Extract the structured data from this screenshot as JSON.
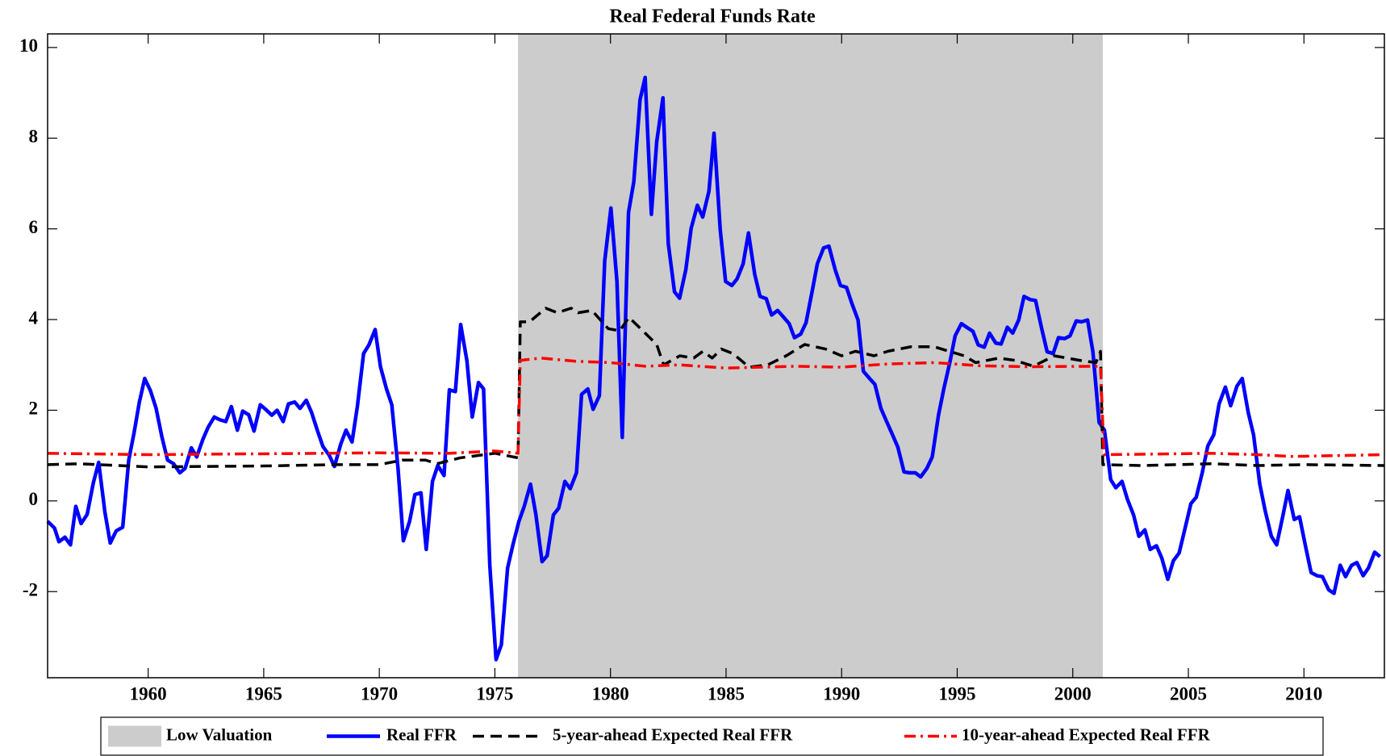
{
  "chart_data": {
    "type": "line",
    "title": "Real Federal Funds Rate",
    "xlim": [
      1955.65,
      2013.48
    ],
    "ylim": [
      -3.9,
      10.3
    ],
    "xticks": [
      1960,
      1965,
      1970,
      1975,
      1980,
      1985,
      1990,
      1995,
      2000,
      2005,
      2010
    ],
    "yticks": [
      -2,
      0,
      2,
      4,
      6,
      8,
      10
    ],
    "shaded_regions": [
      {
        "name": "Low Valuation",
        "color": "#cccccc",
        "spans": [
          [
            1976.0,
            1988.65
          ],
          [
            1988.65,
            2001.3
          ]
        ]
      }
    ],
    "series": [
      {
        "name": "Real FFR",
        "color": "#0000ff",
        "style": "solid",
        "x": [
          1955.65,
          1955.95,
          1956.14,
          1956.4,
          1956.64,
          1956.87,
          1957.1,
          1957.36,
          1957.63,
          1957.86,
          1958.13,
          1958.36,
          1958.62,
          1958.9,
          1959.16,
          1959.39,
          1959.62,
          1959.85,
          1960.1,
          1960.34,
          1960.6,
          1960.84,
          1961.1,
          1961.37,
          1961.6,
          1961.87,
          1962.1,
          1962.37,
          1962.6,
          1962.86,
          1963.1,
          1963.36,
          1963.6,
          1963.86,
          1964.09,
          1964.35,
          1964.58,
          1964.85,
          1965.08,
          1965.35,
          1965.58,
          1965.84,
          1966.07,
          1966.34,
          1966.57,
          1966.84,
          1967.07,
          1967.33,
          1967.56,
          1967.83,
          1968.06,
          1968.33,
          1968.56,
          1968.82,
          1969.05,
          1969.32,
          1969.55,
          1969.82,
          1970.05,
          1970.31,
          1970.54,
          1970.81,
          1971.04,
          1971.31,
          1971.54,
          1971.8,
          1972.03,
          1972.3,
          1972.53,
          1972.8,
          1973.03,
          1973.29,
          1973.52,
          1973.79,
          1974.02,
          1974.29,
          1974.51,
          1974.78,
          1975.05,
          1975.28,
          1975.55,
          1975.78,
          1976.04,
          1976.27,
          1976.54,
          1976.77,
          1977.04,
          1977.26,
          1977.53,
          1977.76,
          1978.03,
          1978.26,
          1978.53,
          1978.75,
          1979.02,
          1979.25,
          1979.52,
          1979.75,
          1980.02,
          1980.28,
          1980.51,
          1980.78,
          1981.01,
          1981.28,
          1981.5,
          1981.77,
          1982.0,
          1982.27,
          1982.5,
          1982.77,
          1982.99,
          1983.26,
          1983.49,
          1983.76,
          1983.99,
          1984.26,
          1984.48,
          1984.75,
          1984.98,
          1985.25,
          1985.48,
          1985.74,
          1985.97,
          1986.24,
          1986.47,
          1986.74,
          1986.97,
          1987.23,
          1987.46,
          1987.73,
          1987.96,
          1988.23,
          1988.46,
          1988.72,
          1988.95,
          1989.22,
          1989.45,
          1989.72,
          1989.95,
          1990.21,
          1990.44,
          1990.71,
          1990.94,
          1991.21,
          1991.44,
          1991.7,
          1991.93,
          1992.2,
          1992.43,
          1992.7,
          1992.93,
          1993.19,
          1993.42,
          1993.69,
          1993.92,
          1994.19,
          1994.42,
          1994.68,
          1994.91,
          1995.18,
          1995.41,
          1995.68,
          1995.91,
          1996.17,
          1996.4,
          1996.67,
          1996.9,
          1997.17,
          1997.4,
          1997.66,
          1997.89,
          1998.16,
          1998.39,
          1998.66,
          1998.89,
          1999.15,
          1999.38,
          1999.65,
          1999.88,
          2000.15,
          2000.38,
          2000.64,
          2000.87,
          2001.14,
          2001.37,
          2001.64,
          2001.86,
          2002.13,
          2002.36,
          2002.63,
          2002.86,
          2003.12,
          2003.35,
          2003.62,
          2003.85,
          2004.11,
          2004.35,
          2004.6,
          2004.84,
          2005.11,
          2005.34,
          2005.6,
          2005.84,
          2006.1,
          2006.33,
          2006.6,
          2006.83,
          2007.1,
          2007.33,
          2007.59,
          2007.82,
          2008.09,
          2008.32,
          2008.59,
          2008.82,
          2009.08,
          2009.31,
          2009.58,
          2009.81,
          2010.08,
          2010.31,
          2010.57,
          2010.8,
          2011.07,
          2011.3,
          2011.57,
          2011.8,
          2012.06,
          2012.29,
          2012.56,
          2012.79,
          2013.06,
          2013.29
        ],
        "values": [
          -0.45,
          -0.6,
          -0.9,
          -0.8,
          -0.97,
          -0.12,
          -0.5,
          -0.3,
          0.4,
          0.85,
          -0.25,
          -0.93,
          -0.66,
          -0.58,
          0.9,
          1.5,
          2.18,
          2.7,
          2.43,
          2.05,
          1.4,
          0.9,
          0.82,
          0.62,
          0.72,
          1.17,
          0.97,
          1.36,
          1.63,
          1.85,
          1.79,
          1.75,
          2.08,
          1.56,
          1.98,
          1.9,
          1.54,
          2.12,
          2.02,
          1.89,
          2.0,
          1.75,
          2.14,
          2.18,
          2.04,
          2.22,
          1.95,
          1.54,
          1.2,
          1.01,
          0.76,
          1.25,
          1.56,
          1.3,
          2.08,
          3.25,
          3.44,
          3.78,
          2.96,
          2.47,
          2.12,
          0.72,
          -0.88,
          -0.45,
          0.14,
          0.18,
          -1.07,
          0.43,
          0.78,
          0.56,
          2.45,
          2.41,
          3.89,
          3.09,
          1.85,
          2.61,
          2.47,
          -1.42,
          -3.5,
          -3.17,
          -1.48,
          -0.97,
          -0.45,
          -0.12,
          0.37,
          -0.29,
          -1.34,
          -1.21,
          -0.31,
          -0.16,
          0.43,
          0.27,
          0.62,
          2.35,
          2.47,
          2.02,
          2.32,
          5.29,
          6.46,
          4.84,
          1.4,
          6.36,
          7.04,
          8.85,
          9.34,
          6.32,
          7.92,
          8.89,
          5.68,
          4.61,
          4.47,
          5.1,
          6.01,
          6.52,
          6.26,
          6.83,
          8.11,
          5.97,
          4.84,
          4.75,
          4.9,
          5.23,
          5.91,
          5.0,
          4.51,
          4.46,
          4.1,
          4.2,
          4.07,
          3.91,
          3.6,
          3.68,
          3.93,
          4.61,
          5.23,
          5.58,
          5.62,
          5.1,
          4.75,
          4.71,
          4.36,
          3.99,
          2.86,
          2.7,
          2.57,
          2.04,
          1.77,
          1.46,
          1.19,
          0.64,
          0.62,
          0.62,
          0.53,
          0.72,
          0.97,
          1.89,
          2.47,
          3.05,
          3.64,
          3.91,
          3.83,
          3.74,
          3.44,
          3.39,
          3.7,
          3.48,
          3.46,
          3.83,
          3.7,
          3.99,
          4.51,
          4.44,
          4.42,
          3.79,
          3.29,
          3.25,
          3.6,
          3.58,
          3.64,
          3.97,
          3.95,
          3.99,
          3.29,
          1.73,
          1.56,
          0.47,
          0.29,
          0.43,
          0.04,
          -0.31,
          -0.78,
          -0.64,
          -1.07,
          -0.99,
          -1.26,
          -1.73,
          -1.32,
          -1.15,
          -0.64,
          -0.06,
          0.08,
          0.62,
          1.21,
          1.46,
          2.14,
          2.51,
          2.1,
          2.53,
          2.7,
          1.95,
          1.46,
          0.37,
          -0.21,
          -0.78,
          -0.97,
          -0.35,
          0.23,
          -0.41,
          -0.35,
          -1.03,
          -1.58,
          -1.65,
          -1.67,
          -1.96,
          -2.04,
          -1.42,
          -1.67,
          -1.42,
          -1.36,
          -1.65,
          -1.48,
          -1.13,
          -1.23
        ]
      },
      {
        "name": "5-year-ahead Expected Real FFR",
        "color": "#000000",
        "style": "dashed",
        "x": [
          1955.65,
          1957,
          1960,
          1965,
          1968,
          1970,
          1971,
          1972,
          1972.5,
          1973.5,
          1975,
          1976.0,
          1976.1,
          1976.5,
          1977.2,
          1977.7,
          1978.3,
          1978.6,
          1979.2,
          1979.9,
          1980.4,
          1980.8,
          1981.5,
          1982,
          1982.3,
          1983,
          1983.6,
          1984,
          1984.4,
          1984.8,
          1985.3,
          1986,
          1986.8,
          1987.6,
          1988.4,
          1989.3,
          1990,
          1990.6,
          1991.4,
          1992,
          1993,
          1994,
          1995.3,
          1995.8,
          1996.8,
          1997.5,
          1998.3,
          1999.2,
          2000.3,
          2001,
          2001.2,
          2001.3,
          2003,
          2006,
          2008,
          2010,
          2013.48
        ],
        "values": [
          0.8,
          0.82,
          0.75,
          0.77,
          0.8,
          0.8,
          0.9,
          0.9,
          0.82,
          0.95,
          1.05,
          0.95,
          3.95,
          3.95,
          4.25,
          4.15,
          4.25,
          4.15,
          4.2,
          3.8,
          3.75,
          4.05,
          3.7,
          3.45,
          3.0,
          3.2,
          3.15,
          3.3,
          3.15,
          3.35,
          3.25,
          2.95,
          3.0,
          3.2,
          3.45,
          3.35,
          3.2,
          3.3,
          3.2,
          3.3,
          3.4,
          3.4,
          3.2,
          3.05,
          3.15,
          3.1,
          2.97,
          3.2,
          3.1,
          3.05,
          3.3,
          0.8,
          0.78,
          0.82,
          0.78,
          0.8,
          0.78
        ]
      },
      {
        "name": "10-year-ahead Expected Real FFR",
        "color": "#ff0000",
        "style": "dashdot",
        "x": [
          1955.65,
          1960,
          1970,
          1973,
          1975,
          1976.0,
          1976.1,
          1977,
          1978.5,
          1980,
          1981.5,
          1983,
          1985,
          1986.5,
          1988,
          1990,
          1992,
          1994,
          1996,
          1998,
          2001.2,
          2001.35,
          2003,
          2006,
          2008,
          2009.5,
          2013.48
        ],
        "values": [
          1.05,
          1.02,
          1.06,
          1.05,
          1.1,
          1.05,
          3.1,
          3.15,
          3.08,
          3.05,
          2.97,
          3.0,
          2.93,
          2.95,
          2.97,
          2.95,
          3.02,
          3.05,
          2.98,
          2.96,
          2.97,
          1.02,
          1.03,
          1.05,
          1.02,
          0.98,
          1.02
        ]
      }
    ]
  }
}
